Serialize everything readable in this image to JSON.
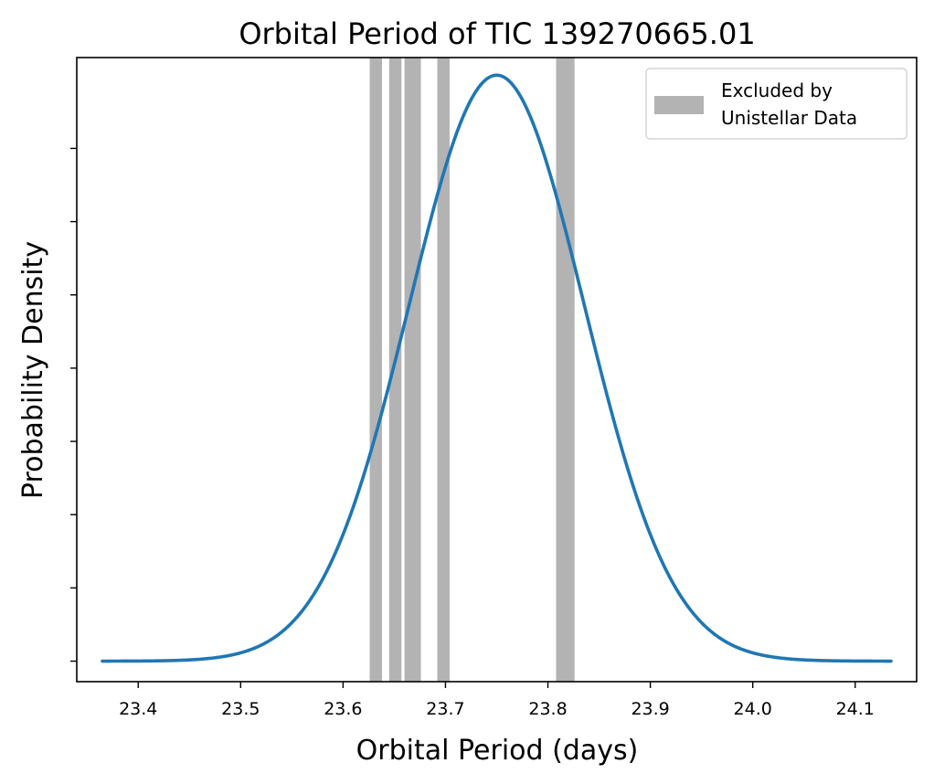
{
  "chart_data": {
    "type": "line",
    "title": "Orbital Period of TIC 139270665.01",
    "xlabel": "Orbital Period (days)",
    "ylabel": "Probability Density",
    "xlim": [
      23.34,
      24.16
    ],
    "ylim": [
      -0.035,
      1.03
    ],
    "x_ticks": [
      "23.4",
      "23.5",
      "23.6",
      "23.7",
      "23.8",
      "23.9",
      "24.0",
      "24.1"
    ],
    "y_ticks_labeled": false,
    "y_tick_count": 8,
    "grid": false,
    "legend": {
      "placement": "top-right",
      "entries": [
        {
          "label_lines": [
            "Excluded by",
            "Unistellar Data"
          ],
          "color": "#b3b3b3"
        }
      ]
    },
    "series": [
      {
        "type": "gaussian",
        "mean": 23.75,
        "sigma": 0.0857,
        "x_range": [
          23.365,
          24.135
        ],
        "color": "#1f77b4"
      }
    ],
    "excluded_bands": [
      {
        "x_start": 23.626,
        "x_end": 23.638
      },
      {
        "x_start": 23.645,
        "x_end": 23.657
      },
      {
        "x_start": 23.66,
        "x_end": 23.676
      },
      {
        "x_start": 23.692,
        "x_end": 23.704
      },
      {
        "x_start": 23.808,
        "x_end": 23.826
      }
    ]
  }
}
